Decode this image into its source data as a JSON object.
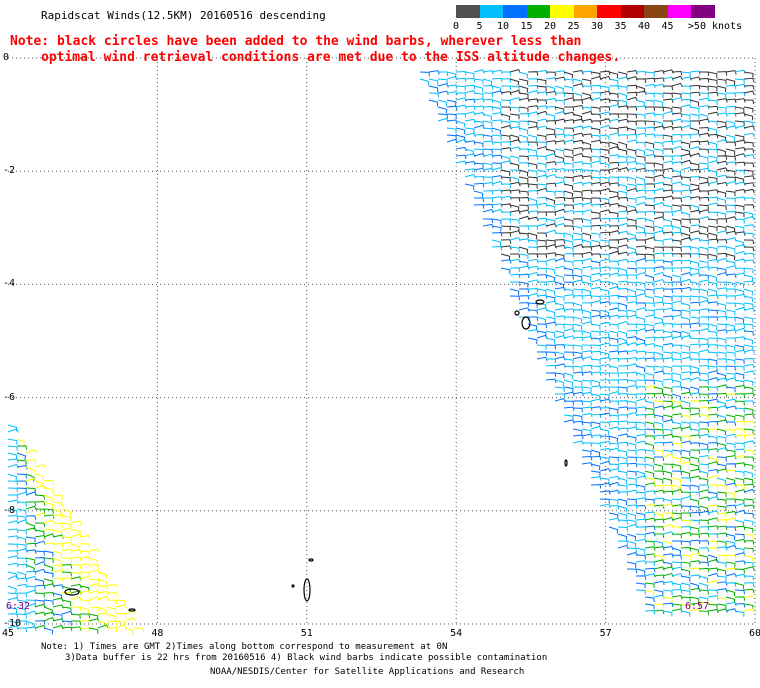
{
  "header": {
    "title": "Rapidscat Winds(12.5KM) 20160516 descending",
    "note_line1": "Note: black circles have been added to the wind barbs, wherever less than",
    "note_line2": "optimal wind retrieval conditions are met due to the ISS altitude changes."
  },
  "colorbar": {
    "bins": [
      {
        "label": "0",
        "color": "#505050"
      },
      {
        "label": "5",
        "color": "#00bfff"
      },
      {
        "label": "10",
        "color": "#0070ff"
      },
      {
        "label": "15",
        "color": "#00b000"
      },
      {
        "label": "20",
        "color": "#ffff00"
      },
      {
        "label": "25",
        "color": "#ffa500"
      },
      {
        "label": "30",
        "color": "#ff0000"
      },
      {
        "label": "35",
        "color": "#b00000"
      },
      {
        "label": "40",
        "color": "#8b4513"
      },
      {
        "label": "45",
        "color": "#ff00ff"
      },
      {
        "label": ">50 knots",
        "color": "#800080"
      }
    ]
  },
  "map": {
    "y_ticks": [
      "0",
      "-2",
      "-4",
      "-6",
      "-8",
      "-10"
    ],
    "x_ticks": [
      "45",
      "48",
      "51",
      "54",
      "57",
      "60"
    ],
    "time_labels": {
      "left": "6:32",
      "right": "6:57"
    },
    "grid": "dotted"
  },
  "footer": {
    "line1": "Note: 1) Times are GMT 2)Times along bottom correspond to measurement at 0N",
    "line2": "3)Data buffer is 22 hrs from 20160516 4) Black wind barbs indicate possible contamination",
    "line3": "NOAA/NESDIS/Center for Satellite Applications and Research"
  }
}
